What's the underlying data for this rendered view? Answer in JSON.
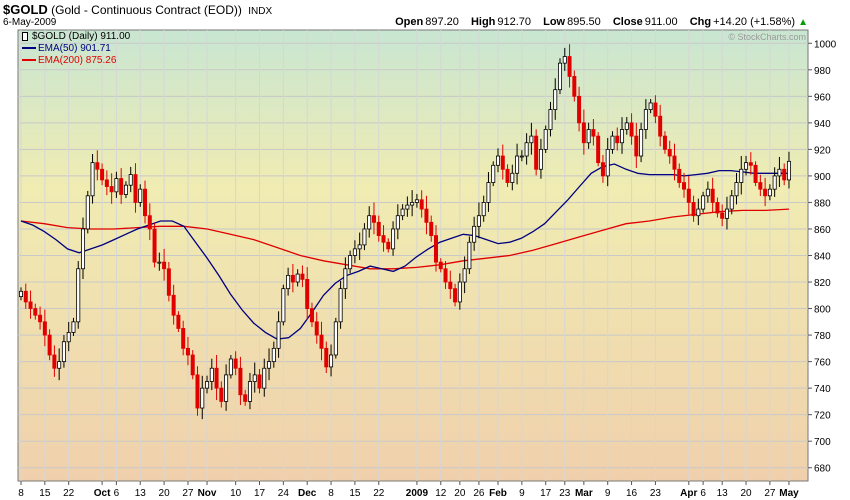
{
  "header": {
    "symbol": "$GOLD",
    "name": "(Gold - Continuous Contract (EOD))",
    "exchange": "INDX",
    "date": "6-May-2009",
    "open_label": "Open",
    "open": "897.20",
    "high_label": "High",
    "high": "912.70",
    "low_label": "Low",
    "low": "895.50",
    "close_label": "Close",
    "close": "911.00",
    "chg_label": "Chg",
    "chg": "+14.20 (+1.58%)",
    "arrow": "▲"
  },
  "legend": [
    {
      "label": "$GOLD (Daily) 911.00",
      "color": "#000000",
      "marker": "candle"
    },
    {
      "label": "EMA(50) 901.71",
      "color": "#000080",
      "marker": "line"
    },
    {
      "label": "EMA(200) 875.26",
      "color": "#e00000",
      "marker": "line"
    }
  ],
  "watermark": "© StockCharts.com",
  "chart_data": {
    "type": "candlestick",
    "title": "$GOLD (Gold - Continuous Contract (EOD))",
    "ylim": [
      670,
      1010
    ],
    "y_ticks": [
      680,
      700,
      720,
      740,
      760,
      780,
      800,
      820,
      840,
      860,
      880,
      900,
      920,
      940,
      960,
      980,
      1000
    ],
    "grid": true,
    "y_axis_side": "right",
    "x_ticks": [
      {
        "label": "8",
        "index": 0
      },
      {
        "label": "15",
        "index": 5
      },
      {
        "label": "22",
        "index": 10
      },
      {
        "label": "Oct",
        "index": 17,
        "bold": true
      },
      {
        "label": "6",
        "index": 20
      },
      {
        "label": "13",
        "index": 25
      },
      {
        "label": "20",
        "index": 30
      },
      {
        "label": "27",
        "index": 35
      },
      {
        "label": "Nov",
        "index": 39,
        "bold": true
      },
      {
        "label": "10",
        "index": 45
      },
      {
        "label": "17",
        "index": 50
      },
      {
        "label": "24",
        "index": 55
      },
      {
        "label": "Dec",
        "index": 60,
        "bold": true
      },
      {
        "label": "8",
        "index": 65
      },
      {
        "label": "15",
        "index": 70
      },
      {
        "label": "22",
        "index": 75
      },
      {
        "label": "2009",
        "index": 83,
        "bold": true
      },
      {
        "label": "12",
        "index": 88
      },
      {
        "label": "20",
        "index": 92
      },
      {
        "label": "26",
        "index": 96
      },
      {
        "label": "Feb",
        "index": 100,
        "bold": true
      },
      {
        "label": "9",
        "index": 105
      },
      {
        "label": "17",
        "index": 110
      },
      {
        "label": "23",
        "index": 114
      },
      {
        "label": "Mar",
        "index": 118,
        "bold": true
      },
      {
        "label": "9",
        "index": 123
      },
      {
        "label": "16",
        "index": 128
      },
      {
        "label": "23",
        "index": 133
      },
      {
        "label": "Apr",
        "index": 140,
        "bold": true
      },
      {
        "label": "6",
        "index": 143
      },
      {
        "label": "13",
        "index": 147
      },
      {
        "label": "20",
        "index": 152
      },
      {
        "label": "27",
        "index": 157
      },
      {
        "label": "May",
        "index": 161,
        "bold": true
      }
    ],
    "close": [
      813,
      805,
      800,
      795,
      790,
      780,
      765,
      755,
      760,
      775,
      782,
      790,
      830,
      860,
      885,
      910,
      905,
      897,
      892,
      888,
      898,
      886,
      893,
      901,
      880,
      890,
      870,
      860,
      835,
      835,
      830,
      810,
      795,
      785,
      770,
      765,
      750,
      725,
      740,
      745,
      755,
      740,
      730,
      750,
      762,
      755,
      735,
      730,
      745,
      750,
      740,
      755,
      760,
      770,
      790,
      815,
      825,
      820,
      826,
      822,
      800,
      790,
      780,
      770,
      756,
      765,
      790,
      815,
      830,
      840,
      845,
      848,
      860,
      870,
      865,
      855,
      850,
      845,
      860,
      870,
      875,
      878,
      880,
      882,
      875,
      865,
      855,
      835,
      830,
      820,
      815,
      805,
      820,
      830,
      850,
      862,
      870,
      880,
      895,
      908,
      915,
      905,
      895,
      902,
      915,
      915,
      925,
      930,
      905,
      920,
      935,
      950,
      965,
      985,
      990,
      975,
      960,
      940,
      925,
      935,
      930,
      910,
      900,
      920,
      930,
      925,
      935,
      940,
      930,
      915,
      935,
      950,
      955,
      945,
      930,
      920,
      915,
      905,
      895,
      890,
      880,
      870,
      875,
      885,
      890,
      880,
      872,
      868,
      875,
      885,
      895,
      905,
      910,
      908,
      895,
      890,
      885,
      890,
      900,
      905,
      897,
      911
    ],
    "ema50": [
      866,
      863,
      858,
      852,
      845,
      842,
      845,
      848,
      852,
      856,
      860,
      863,
      866,
      866,
      862,
      850,
      838,
      825,
      811,
      799,
      789,
      782,
      777,
      778,
      785,
      797,
      810,
      819,
      825,
      828,
      832,
      830,
      828,
      832,
      839,
      845,
      850,
      853,
      856,
      855,
      852,
      849,
      850,
      853,
      858,
      864,
      873,
      882,
      892,
      902,
      907,
      909,
      905,
      902,
      901,
      901,
      901,
      900,
      901,
      902,
      904,
      904,
      903,
      902,
      902,
      902,
      902
    ],
    "ema200": [
      866,
      864,
      861,
      860,
      860,
      861,
      862,
      862,
      860,
      856,
      852,
      846,
      840,
      836,
      833,
      830,
      830,
      831,
      833,
      836,
      838,
      840,
      844,
      849,
      854,
      859,
      864,
      866,
      869,
      871,
      873,
      874,
      874,
      875
    ]
  }
}
